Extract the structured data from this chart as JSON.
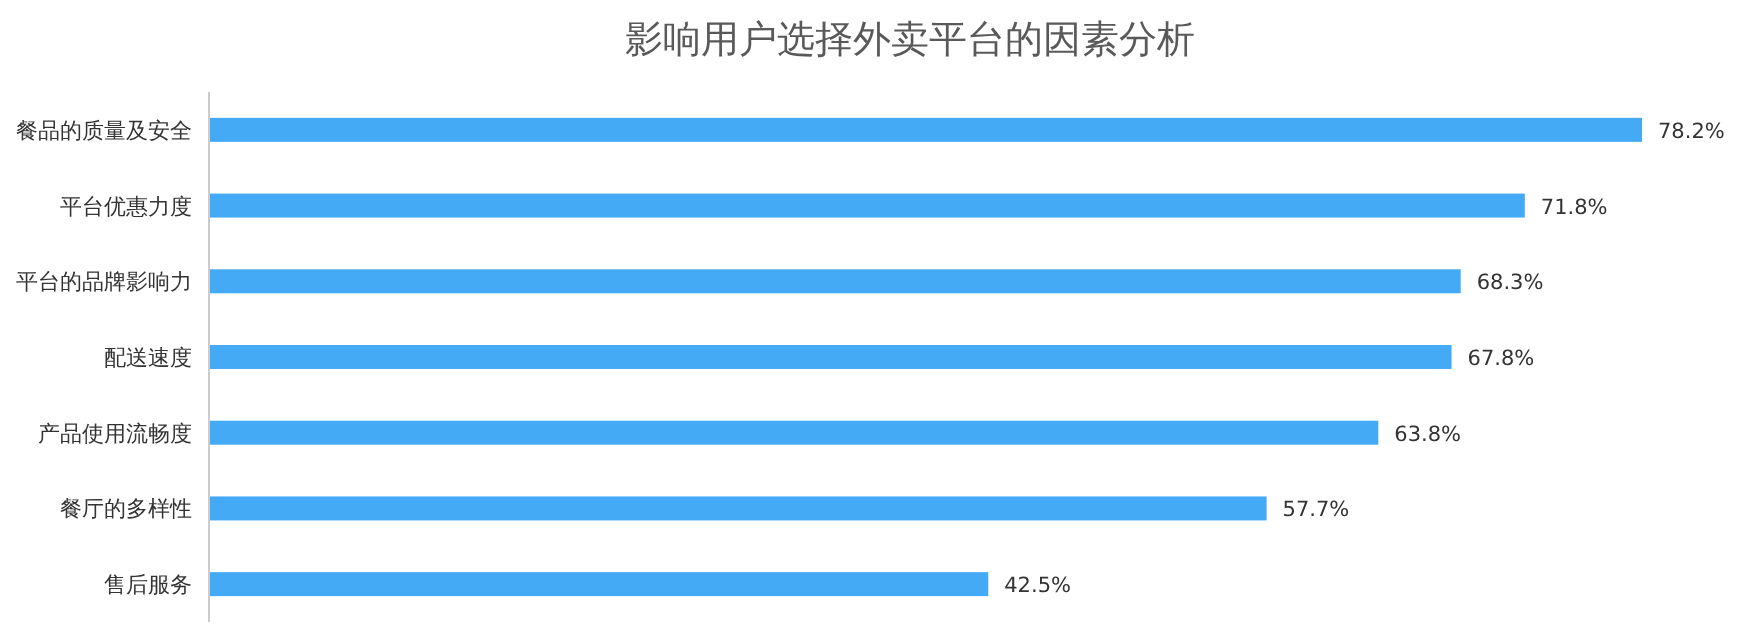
{
  "chart_data": {
    "type": "bar",
    "orientation": "horizontal",
    "title": "影响用户选择外卖平台的因素分析",
    "categories": [
      "餐品的质量及安全",
      "平台优惠力度",
      "平台的品牌影响力",
      "配送速度",
      "产品使用流畅度",
      "餐厅的多样性",
      "售后服务"
    ],
    "values": [
      78.2,
      71.8,
      68.3,
      67.8,
      63.8,
      57.7,
      42.5
    ],
    "value_labels": [
      "78.2%",
      "71.8%",
      "68.3%",
      "67.8%",
      "63.8%",
      "57.7%",
      "42.5%"
    ],
    "color": "#45aaf6"
  }
}
